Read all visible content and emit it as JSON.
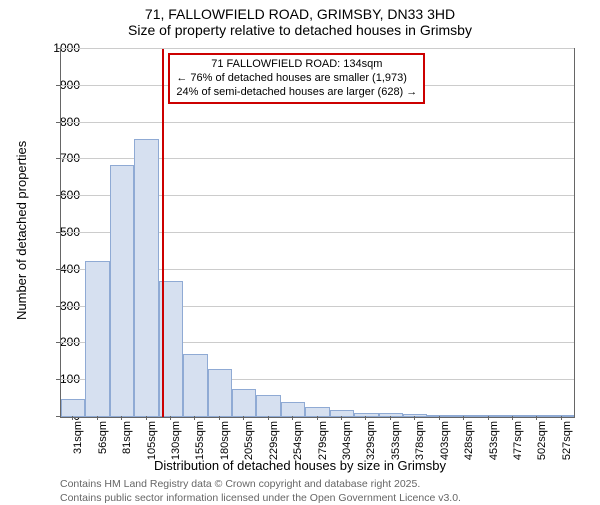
{
  "title": {
    "line1": "71, FALLOWFIELD ROAD, GRIMSBY, DN33 3HD",
    "line2": "Size of property relative to detached houses in Grimsby"
  },
  "chart": {
    "type": "histogram",
    "background_color": "#ffffff",
    "grid_color": "#cccccc",
    "border_color": "#666666",
    "bar_fill": "#d6e0f0",
    "bar_stroke": "#8faad4",
    "ref_line_color": "#cc0000",
    "annotation_border": "#cc0000",
    "ylim": [
      0,
      1000
    ],
    "ytick_step": 100,
    "yticks": [
      0,
      100,
      200,
      300,
      400,
      500,
      600,
      700,
      800,
      900,
      1000
    ],
    "xticks": [
      "31sqm",
      "56sqm",
      "81sqm",
      "105sqm",
      "130sqm",
      "155sqm",
      "180sqm",
      "205sqm",
      "229sqm",
      "254sqm",
      "279sqm",
      "304sqm",
      "329sqm",
      "353sqm",
      "378sqm",
      "403sqm",
      "428sqm",
      "453sqm",
      "477sqm",
      "502sqm",
      "527sqm"
    ],
    "values": [
      50,
      425,
      685,
      755,
      370,
      170,
      130,
      75,
      60,
      40,
      28,
      20,
      12,
      10,
      8,
      6,
      4,
      3,
      2,
      1,
      1
    ],
    "ref_value_x_index": 4.15,
    "y_axis_label": "Number of detached properties",
    "x_axis_label": "Distribution of detached houses by size in Grimsby"
  },
  "annotation": {
    "line1": "71 FALLOWFIELD ROAD: 134sqm",
    "line2": "← 76% of detached houses are smaller (1,973)",
    "line3": "24% of semi-detached houses are larger (628) →"
  },
  "footer": {
    "line1": "Contains HM Land Registry data © Crown copyright and database right 2025.",
    "line2": "Contains public sector information licensed under the Open Government Licence v3.0."
  }
}
